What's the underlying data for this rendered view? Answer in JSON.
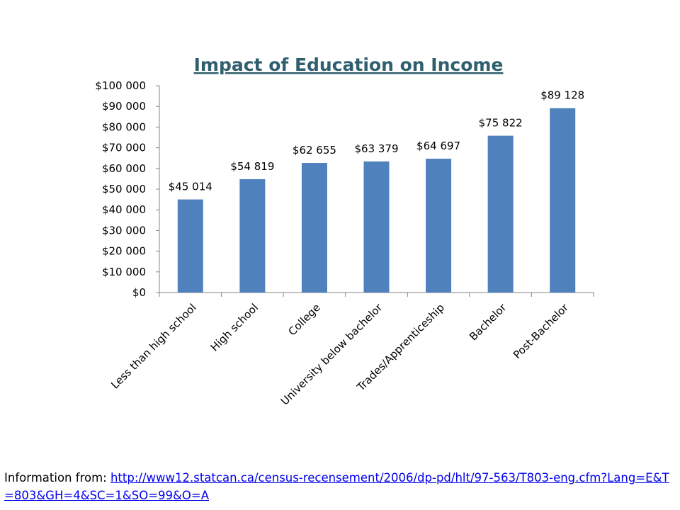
{
  "chart_data": {
    "type": "bar",
    "title": "Impact of Education on Income",
    "categories": [
      "Less than high school",
      "High school",
      "College",
      "University below bachelor",
      "Trades/Apprenticeship",
      "Bachelor",
      "Post-Bachelor"
    ],
    "values": [
      45014,
      54819,
      62655,
      63379,
      64697,
      75822,
      89128
    ],
    "data_labels": [
      "$45 014",
      "$54 819",
      "$62 655",
      "$63 379",
      "$64 697",
      "$75 822",
      "$89 128"
    ],
    "yticks": [
      "$0",
      "$10 000",
      "$20 000",
      "$30 000",
      "$40 000",
      "$50 000",
      "$60 000",
      "$70 000",
      "$80 000",
      "$90 000",
      "$100 000"
    ],
    "ylim": [
      0,
      100000
    ],
    "bar_color": "#4f81bd",
    "grid": false,
    "legend": "none"
  },
  "footer": {
    "prefix": "Information from: ",
    "link_text": "http://www12.statcan.ca/census-recensement/2006/dp-pd/hlt/97-563/T803-eng.cfm?Lang=E&T=803&GH=4&SC=1&SO=99&O=A"
  }
}
